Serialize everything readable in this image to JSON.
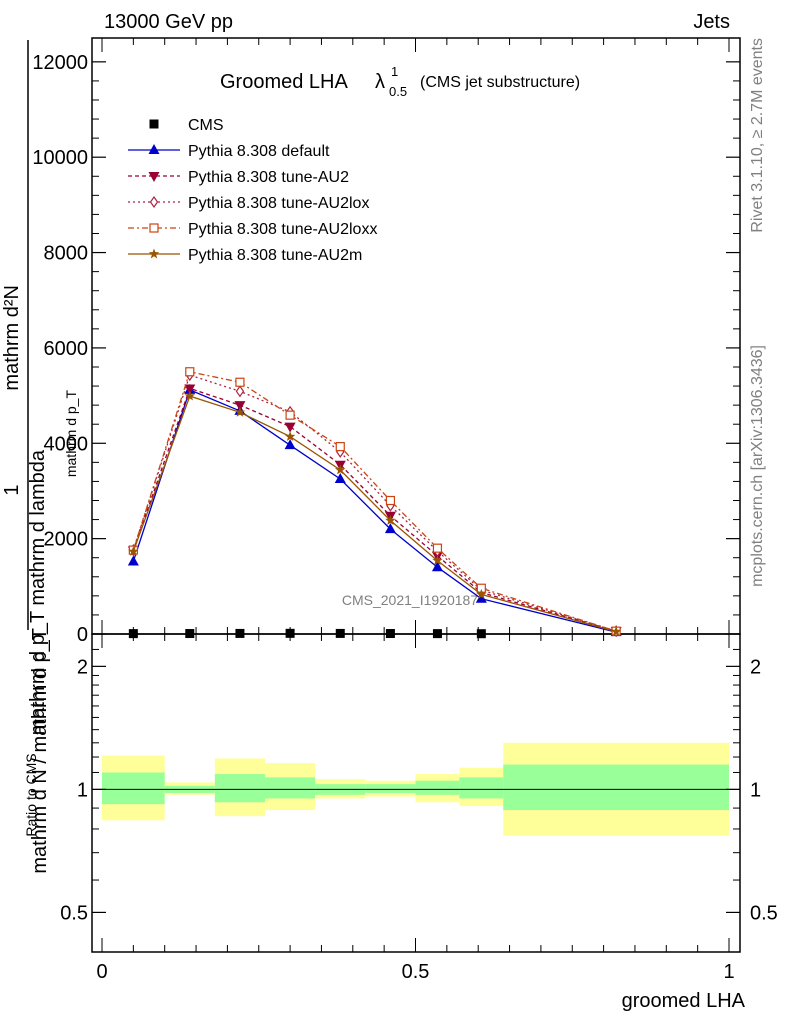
{
  "header": {
    "left": "13000 GeV pp",
    "right": "Jets",
    "side_rivet": "Rivet 3.1.10, ≥ 2.7M events",
    "side_mcplots": "mcplots.cern.ch [arXiv:1306.3436]",
    "watermark": "CMS_2021_I1920187"
  },
  "chart_data": [
    {
      "type": "line",
      "title": "Groomed LHA",
      "title_symbol": "λ",
      "title_sup": "1",
      "title_sub": "0.5",
      "subtitle": "(CMS jet substructure)",
      "ylabel_top": "1",
      "ylabel_num": "mathrm d²N",
      "ylabel_num2": "mathrm d p_T mathrm d lambda",
      "ylabel_den": "mathrm d N / mathrm d p_T",
      "ylabel_den2": "mathrm d p_T",
      "xlabel": "groomed LHA",
      "xlim": [
        0,
        1
      ],
      "ylim": [
        0,
        12500
      ],
      "yticks": [
        {
          "value": 0,
          "label": "0"
        },
        {
          "value": 2000,
          "label": "2000"
        },
        {
          "value": 4000,
          "label": "4000"
        },
        {
          "value": 6000,
          "label": "6000"
        },
        {
          "value": 8000,
          "label": "8000"
        },
        {
          "value": 10000,
          "label": "10000"
        },
        {
          "value": 12000,
          "label": "12000"
        }
      ],
      "xticks": [
        {
          "value": 0,
          "label": "0"
        },
        {
          "value": 0.5,
          "label": "0.5"
        },
        {
          "value": 1,
          "label": "1"
        }
      ],
      "x": [
        0.05,
        0.14,
        0.22,
        0.3,
        0.38,
        0.46,
        0.535,
        0.605,
        0.82
      ],
      "series": [
        {
          "name": "CMS",
          "color": "#000000",
          "marker": "square",
          "dash": "",
          "legend_only_data": true,
          "values": [
            8,
            10,
            12,
            14,
            12,
            10,
            8,
            6,
            0
          ]
        },
        {
          "name": "Pythia 8.308 default",
          "color": "#0000cc",
          "marker": "triangle-up",
          "dash": "",
          "values": [
            1520,
            5120,
            4680,
            3960,
            3250,
            2200,
            1400,
            740,
            40
          ]
        },
        {
          "name": "Pythia 8.308 tune-AU2",
          "color": "#990033",
          "marker": "triangle-down",
          "dash": "4,3",
          "values": [
            1750,
            5150,
            4800,
            4350,
            3550,
            2480,
            1640,
            870,
            60
          ]
        },
        {
          "name": "Pythia 8.308 tune-AU2lox",
          "color": "#aa2244",
          "marker": "diamond",
          "dash": "2,3",
          "values": [
            1760,
            5430,
            5090,
            4660,
            3820,
            2690,
            1740,
            920,
            60
          ]
        },
        {
          "name": "Pythia 8.308 tune-AU2loxx",
          "color": "#cc4411",
          "marker": "square-open",
          "dash": "6,3,2,3",
          "values": [
            1760,
            5500,
            5280,
            4590,
            3930,
            2800,
            1800,
            960,
            60
          ]
        },
        {
          "name": "Pythia 8.308 tune-AU2m",
          "color": "#995500",
          "marker": "star",
          "dash": "",
          "values": [
            1730,
            4990,
            4650,
            4140,
            3440,
            2380,
            1540,
            830,
            50
          ]
        }
      ]
    },
    {
      "type": "area",
      "ylabel": "Ratio to CMS",
      "ylim": [
        0.4,
        2.4
      ],
      "yscale": "log",
      "yticks": [
        {
          "value": 0.5,
          "label": "0.5"
        },
        {
          "value": 1,
          "label": "1"
        },
        {
          "value": 2,
          "label": "2"
        }
      ],
      "bins": [
        {
          "lo": 0.0,
          "hi": 0.1,
          "green": [
            0.92,
            1.1
          ],
          "yellow": [
            0.84,
            1.21
          ]
        },
        {
          "lo": 0.1,
          "hi": 0.18,
          "green": [
            0.98,
            1.02
          ],
          "yellow": [
            0.97,
            1.04
          ]
        },
        {
          "lo": 0.18,
          "hi": 0.26,
          "green": [
            0.93,
            1.09
          ],
          "yellow": [
            0.86,
            1.19
          ]
        },
        {
          "lo": 0.26,
          "hi": 0.34,
          "green": [
            0.95,
            1.07
          ],
          "yellow": [
            0.89,
            1.16
          ]
        },
        {
          "lo": 0.34,
          "hi": 0.42,
          "green": [
            0.97,
            1.03
          ],
          "yellow": [
            0.95,
            1.06
          ]
        },
        {
          "lo": 0.42,
          "hi": 0.5,
          "green": [
            0.98,
            1.03
          ],
          "yellow": [
            0.96,
            1.05
          ]
        },
        {
          "lo": 0.5,
          "hi": 0.57,
          "green": [
            0.97,
            1.05
          ],
          "yellow": [
            0.93,
            1.09
          ]
        },
        {
          "lo": 0.57,
          "hi": 0.64,
          "green": [
            0.95,
            1.07
          ],
          "yellow": [
            0.91,
            1.13
          ]
        },
        {
          "lo": 0.64,
          "hi": 1.0,
          "green": [
            0.89,
            1.15
          ],
          "yellow": [
            0.77,
            1.3
          ]
        }
      ]
    }
  ]
}
